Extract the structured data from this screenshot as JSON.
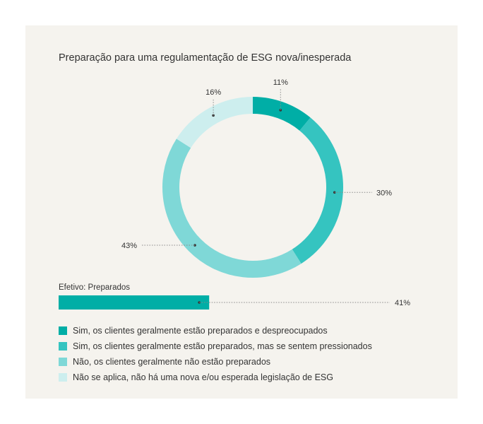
{
  "chart_data": {
    "type": "donut",
    "title": "Preparação para uma regulamentação de ESG nova/inesperada",
    "series": [
      {
        "name": "Sim, os clientes geralmente estão preparados e despreocupados",
        "value": 11,
        "label": "11%",
        "color": "#00aea6"
      },
      {
        "name": "Sim, os clientes geralmente estão preparados, mas se sentem pressionados",
        "value": 30,
        "label": "30%",
        "color": "#35c4c0"
      },
      {
        "name": "Não, os clientes geralmente não estão preparados",
        "value": 43,
        "label": "43%",
        "color": "#7fd8d7"
      },
      {
        "name": "Não se aplica, não há uma nova e/ou esperada legislação de ESG",
        "value": 16,
        "label": "16%",
        "color": "#cdeeee"
      }
    ],
    "summary_bar": {
      "label": "Efetivo: Preparados",
      "value": 41,
      "value_label": "41%",
      "max": 100,
      "color": "#00aea6"
    }
  }
}
